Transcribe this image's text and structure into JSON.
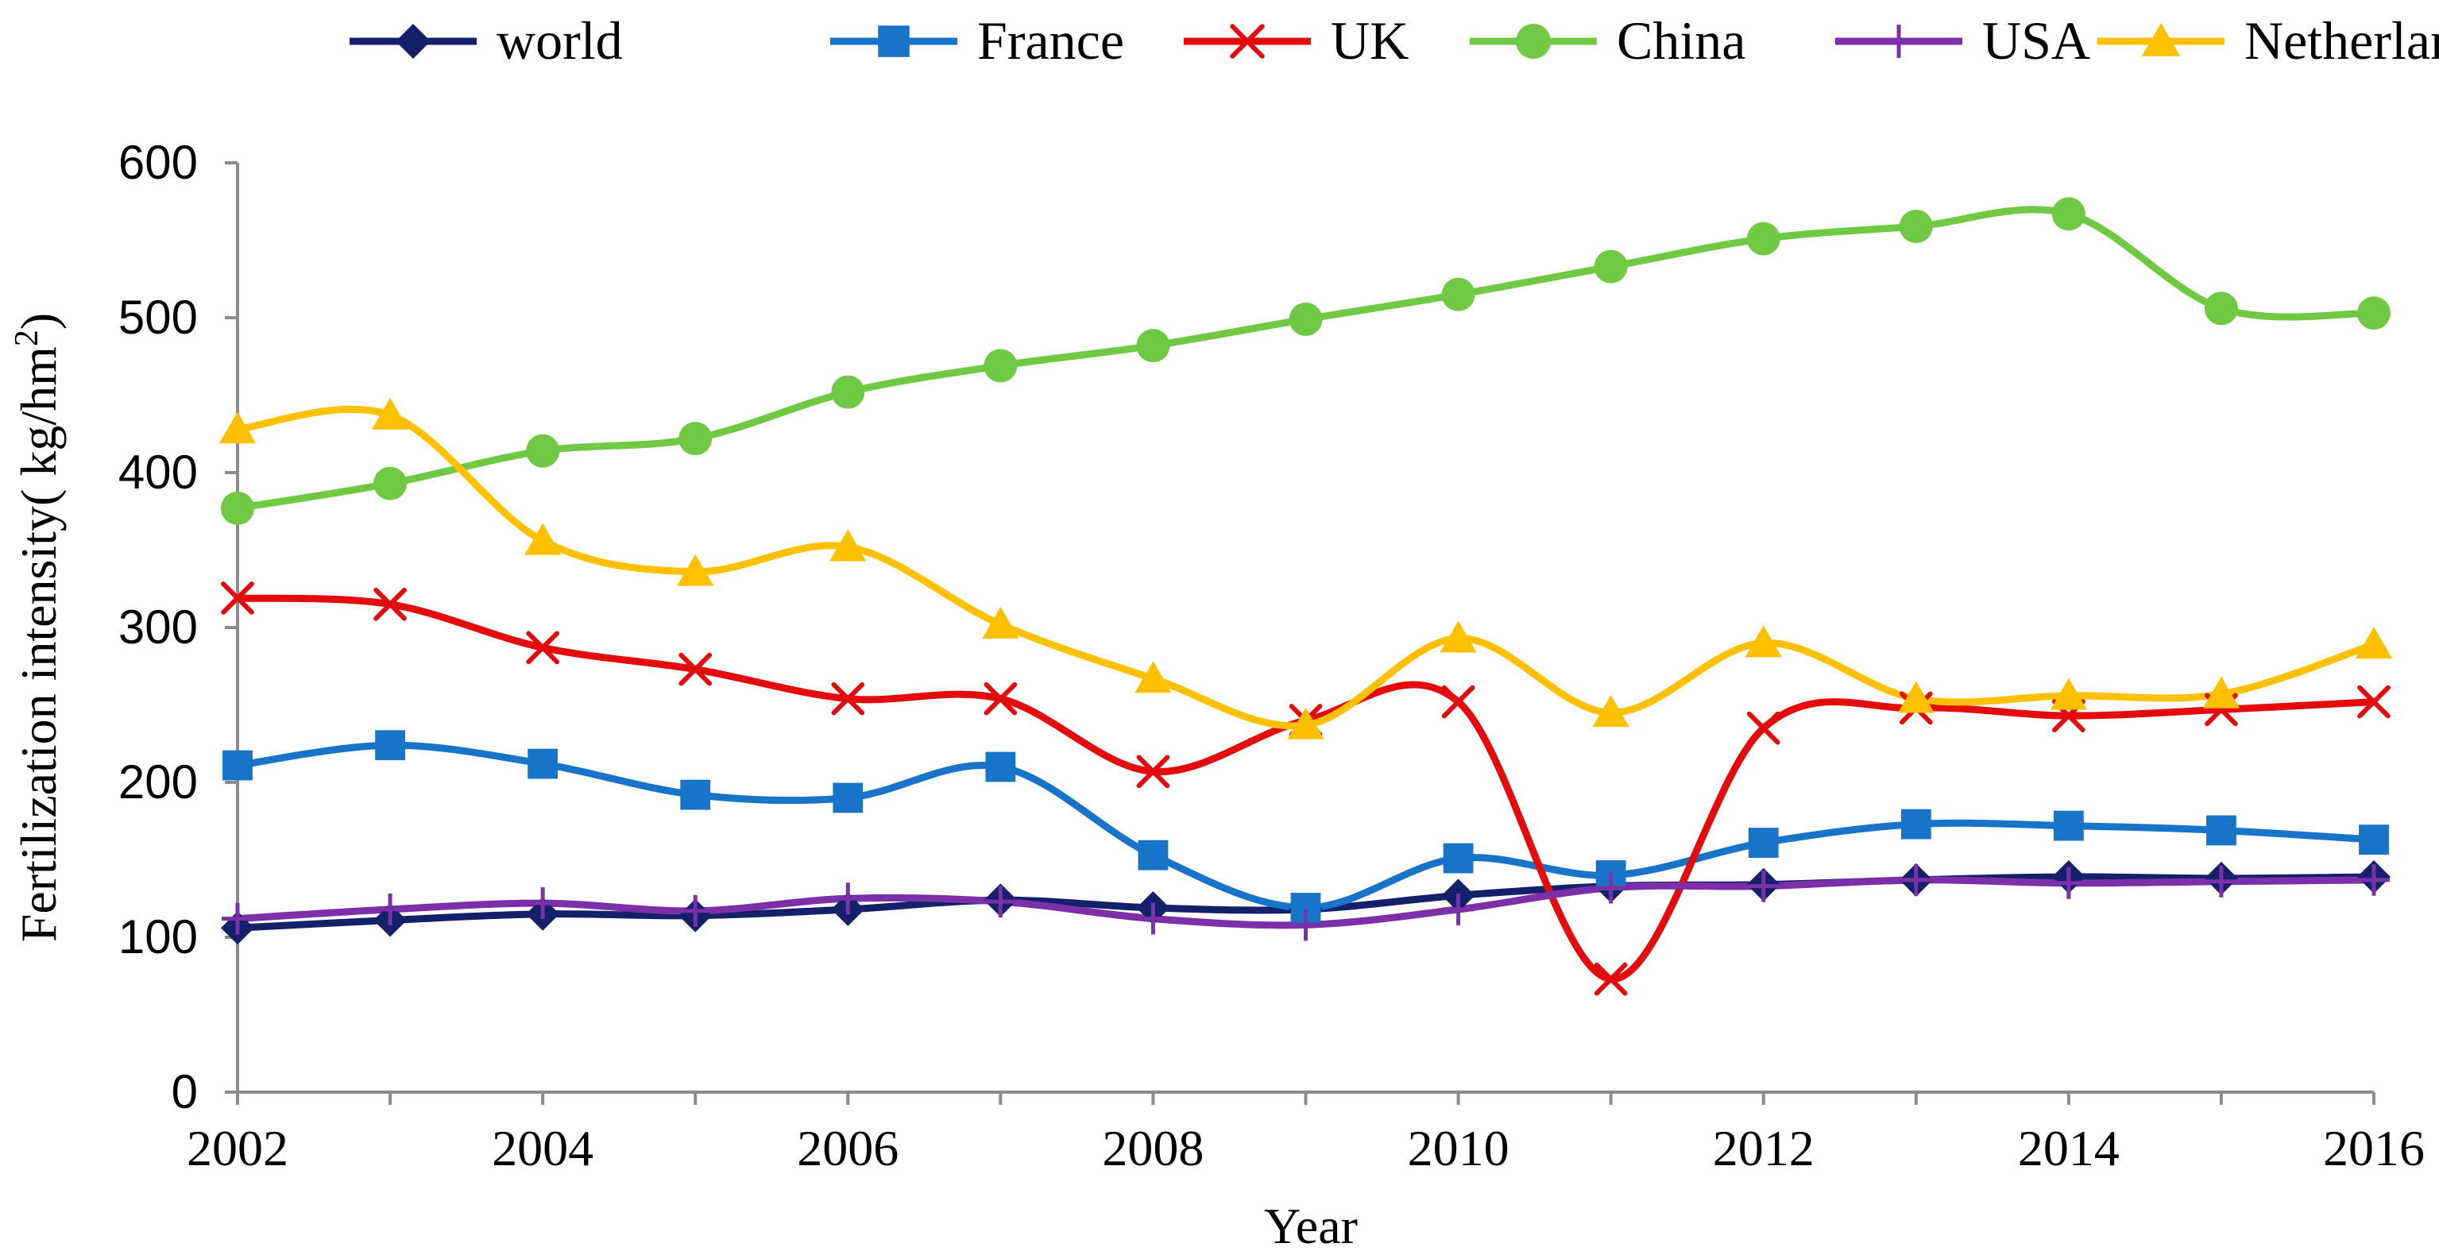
{
  "chart_data": {
    "type": "line",
    "title": "",
    "xlabel": "Year",
    "ylabel_main": "Fertilization intensity( kg/hm",
    "ylabel_sup": "2",
    "ylabel_close": ")",
    "ylabel": "Fertilization intensity( kg/hm2)",
    "x": [
      2002,
      2003,
      2004,
      2005,
      2006,
      2007,
      2008,
      2009,
      2010,
      2011,
      2012,
      2013,
      2014,
      2015,
      2016
    ],
    "x_tick_labels": [
      "2002",
      "2004",
      "2006",
      "2008",
      "2010",
      "2012",
      "2014",
      "2016"
    ],
    "x_tick_values": [
      2002,
      2004,
      2006,
      2008,
      2010,
      2012,
      2014,
      2016
    ],
    "ylim": [
      0,
      600
    ],
    "y_tick_labels": [
      "0",
      "100",
      "200",
      "300",
      "400",
      "500",
      "600"
    ],
    "y_tick_values": [
      0,
      100,
      200,
      300,
      400,
      500,
      600
    ],
    "grid": false,
    "legend_position": "top",
    "series": [
      {
        "name": "world",
        "color": "#14206a",
        "marker": "diamond",
        "values": [
          106,
          111,
          115,
          114,
          118,
          124,
          119,
          118,
          127,
          133,
          134,
          137,
          139,
          138,
          139
        ]
      },
      {
        "name": "France",
        "color": "#1874c8",
        "marker": "square",
        "values": [
          211,
          224,
          212,
          192,
          190,
          210,
          153,
          119,
          151,
          140,
          161,
          173,
          172,
          169,
          163
        ]
      },
      {
        "name": "UK",
        "color": "#e30b0b",
        "marker": "x",
        "values": [
          319,
          315,
          287,
          273,
          254,
          254,
          207,
          240,
          252,
          73,
          235,
          248,
          243,
          247,
          252
        ]
      },
      {
        "name": "China",
        "color": "#70c943",
        "marker": "circle",
        "values": [
          377,
          393,
          414,
          422,
          452,
          469,
          482,
          499,
          515,
          533,
          551,
          559,
          567,
          506,
          503
        ]
      },
      {
        "name": "USA",
        "color": "#7c2fa8",
        "marker": "plus",
        "values": [
          112,
          118,
          122,
          117,
          125,
          123,
          112,
          108,
          118,
          132,
          133,
          137,
          135,
          136,
          137
        ]
      },
      {
        "name": "Netherlands",
        "color": "#ffc000",
        "marker": "triangle",
        "values": [
          428,
          437,
          356,
          336,
          352,
          302,
          267,
          237,
          293,
          245,
          290,
          254,
          256,
          257,
          289
        ]
      }
    ]
  }
}
